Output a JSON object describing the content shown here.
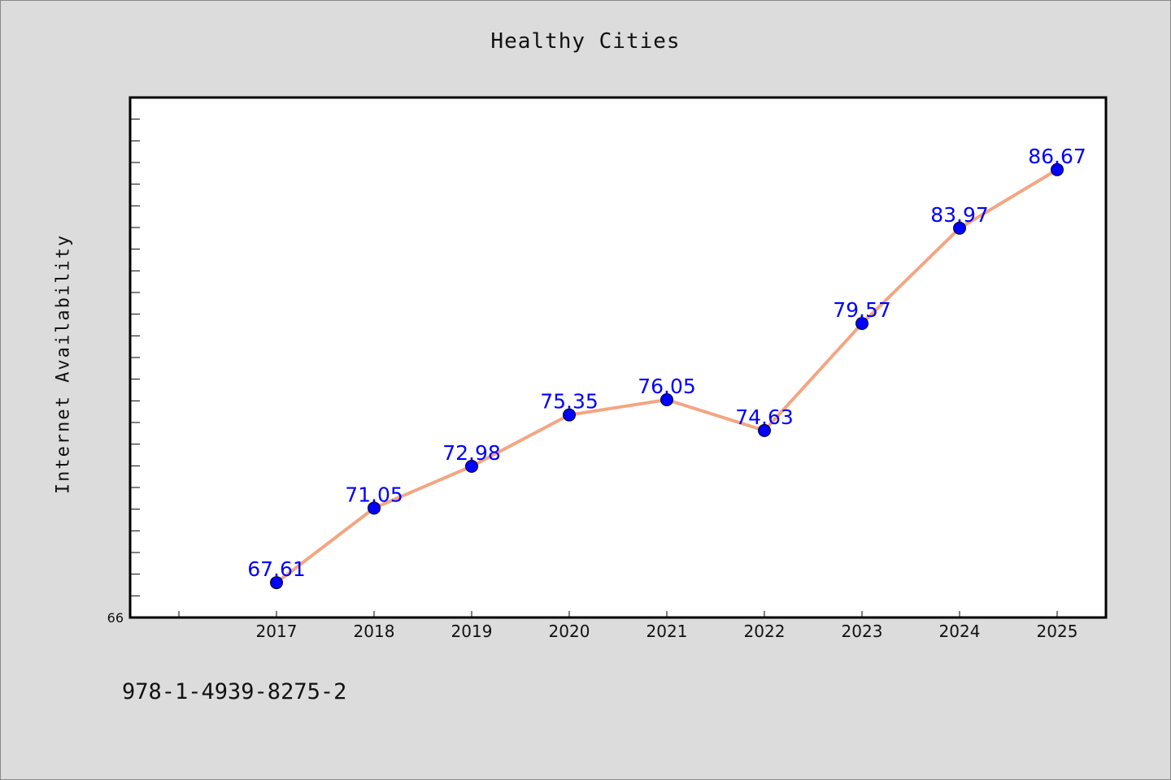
{
  "page": {
    "isbn_text": "978-1-4939-8275-2"
  },
  "chart_data": {
    "type": "line",
    "title": "Healthy Cities",
    "xlabel": "",
    "ylabel": "Internet Availability",
    "x": [
      "2017",
      "2018",
      "2019",
      "2020",
      "2021",
      "2022",
      "2023",
      "2024",
      "2025"
    ],
    "series": [
      {
        "values": [
          67.61,
          71.05,
          72.98,
          75.35,
          76.05,
          74.63,
          79.57,
          83.97,
          86.67
        ]
      }
    ],
    "data_labels": [
      "67.61",
      "71.05",
      "72.98",
      "75.35",
      "76.05",
      "74.63",
      "79.57",
      "83.97",
      "86.67"
    ],
    "ylim": [
      66,
      90
    ],
    "y_tick_labels": [
      "66"
    ],
    "grid": false,
    "legend": "none",
    "colors": {
      "line": "#f4a582",
      "marker": "#0000ff",
      "data_label": "#0000ff",
      "plot_background": "#ffffff",
      "page_background": "#dcdcdc"
    }
  }
}
